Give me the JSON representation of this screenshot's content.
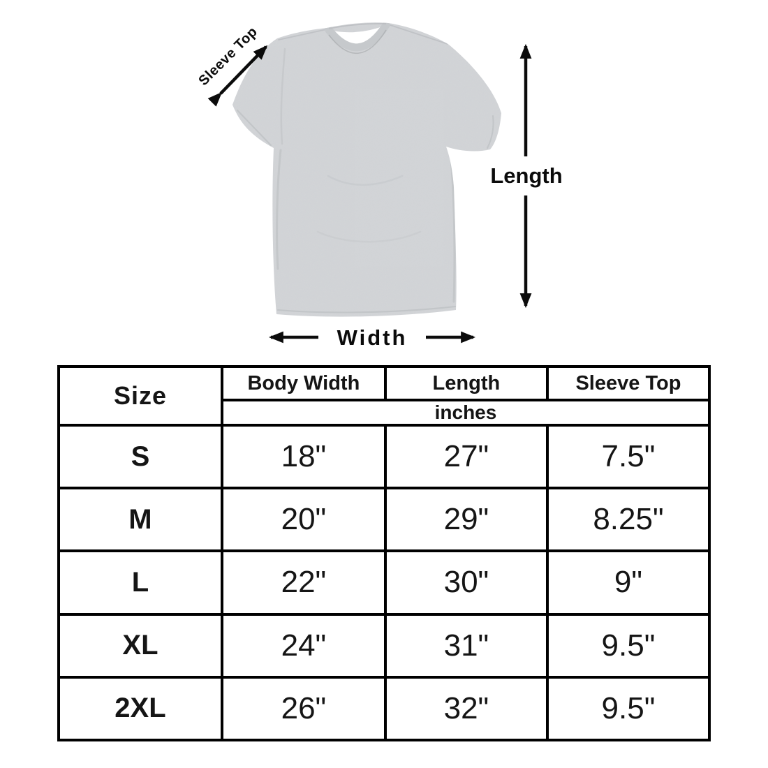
{
  "diagram": {
    "sleeve_top_label": "Sleeve Top",
    "length_label": "Length",
    "width_label": "Width",
    "shirt_color": "#d3d5d8",
    "shirt_shade_color": "#b4b7ba",
    "arrow_color": "#0b0b0b"
  },
  "table": {
    "columns": [
      "Size",
      "Body Width",
      "Length",
      "Sleeve Top"
    ],
    "unit_label": "inches",
    "rows": [
      {
        "size": "S",
        "values": [
          "18\"",
          "27\"",
          "7.5\""
        ]
      },
      {
        "size": "M",
        "values": [
          "20\"",
          "29\"",
          "8.25\""
        ]
      },
      {
        "size": "L",
        "values": [
          "22\"",
          "30\"",
          "9\""
        ]
      },
      {
        "size": "XL",
        "values": [
          "24\"",
          "31\"",
          "9.5\""
        ]
      },
      {
        "size": "2XL",
        "values": [
          "26\"",
          "32\"",
          "9.5\""
        ]
      }
    ]
  },
  "colors": {
    "background": "#ffffff",
    "table_border": "#000000",
    "text": "#151515"
  }
}
